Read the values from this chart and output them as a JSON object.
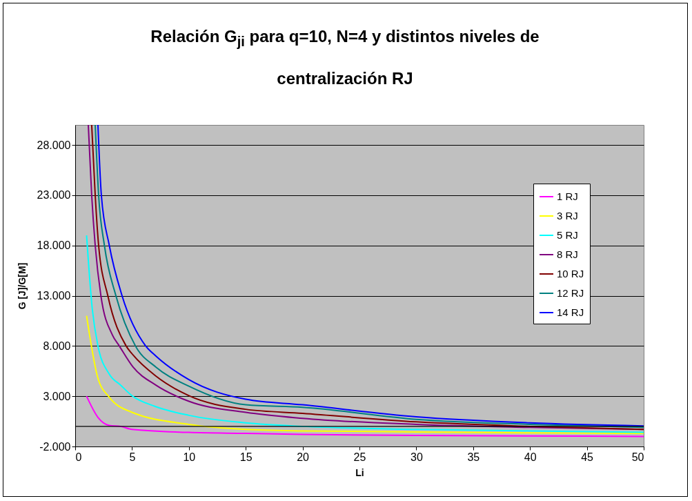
{
  "chart_data": {
    "type": "line",
    "title": "Relación G$_{ji}$ para q=10, N=4 y distintos niveles de centralización RJ",
    "xlabel": "Li",
    "ylabel": "G [J]/G[M]",
    "xlim": [
      0,
      50
    ],
    "xticks": [
      0,
      5,
      10,
      15,
      20,
      25,
      30,
      35,
      40,
      45,
      50
    ],
    "ylim": [
      -2000,
      30000
    ],
    "yticks": [
      {
        "value": -2000,
        "label": "-2.000"
      },
      {
        "value": 3000,
        "label": "3.000"
      },
      {
        "value": 8000,
        "label": "8.000"
      },
      {
        "value": 13000,
        "label": "13.000"
      },
      {
        "value": 18000,
        "label": "18.000"
      },
      {
        "value": 23000,
        "label": "23.000"
      },
      {
        "value": 28000,
        "label": "28.000"
      }
    ],
    "grid": "y",
    "legend": "right",
    "marker": "none",
    "line_style": "solid",
    "ref_lines": [
      {
        "axis": "y",
        "value": 0
      }
    ],
    "series": [
      {
        "name": "1 RJ",
        "color": "#ff00ff",
        "x": [
          1,
          2,
          3,
          4,
          5,
          10,
          15,
          20,
          30,
          40,
          50
        ],
        "values": [
          3000,
          900,
          100,
          0,
          -300,
          -600,
          -700,
          -800,
          -900,
          -950,
          -1000
        ]
      },
      {
        "name": "3 RJ",
        "color": "#ffff00",
        "x": [
          1,
          2,
          3,
          5,
          10,
          15,
          20,
          30,
          40,
          50
        ],
        "values": [
          11000,
          4800,
          2900,
          1400,
          200,
          -300,
          -450,
          -550,
          -650,
          -700
        ]
      },
      {
        "name": "5 RJ",
        "color": "#00ffff",
        "x": [
          1,
          1.5,
          2,
          3,
          4,
          5,
          7,
          10,
          15,
          20,
          30,
          40,
          50
        ],
        "values": [
          19000,
          11700,
          8000,
          5200,
          4100,
          3050,
          2000,
          1100,
          350,
          0,
          -300,
          -450,
          -600
        ]
      },
      {
        "name": "8 RJ",
        "color": "#800080",
        "x": [
          1.15,
          1.45,
          1.76,
          2.26,
          3.27,
          3.88,
          5.09,
          7.1,
          10,
          15,
          20,
          30,
          40,
          50
        ],
        "values": [
          30000,
          23000,
          18000,
          13000,
          9100,
          8000,
          5900,
          4100,
          2500,
          1400,
          800,
          200,
          -100,
          -300
        ]
      },
      {
        "name": "10 RJ",
        "color": "#800000",
        "x": [
          1.45,
          1.76,
          2.06,
          2.87,
          4.48,
          5.09,
          7.1,
          10,
          15,
          20,
          30,
          40,
          50
        ],
        "values": [
          30000,
          23000,
          18000,
          13000,
          8000,
          7100,
          5000,
          3050,
          1700,
          1300,
          450,
          0,
          -300
        ]
      },
      {
        "name": "12 RJ",
        "color": "#008080",
        "x": [
          1.76,
          2.06,
          2.57,
          3.58,
          5.3,
          7.1,
          10,
          15,
          20,
          30,
          40,
          50
        ],
        "values": [
          30000,
          23000,
          18000,
          13000,
          8000,
          5900,
          4000,
          2150,
          1900,
          700,
          200,
          -100
        ]
      },
      {
        "name": "14 RJ",
        "color": "#0000ff",
        "x": [
          2,
          2.3,
          3,
          4.12,
          6.2,
          7.1,
          10,
          15,
          20,
          30,
          40,
          50
        ],
        "values": [
          30000,
          23000,
          18000,
          13000,
          8000,
          7000,
          4650,
          2700,
          2150,
          950,
          350,
          50
        ]
      }
    ]
  }
}
